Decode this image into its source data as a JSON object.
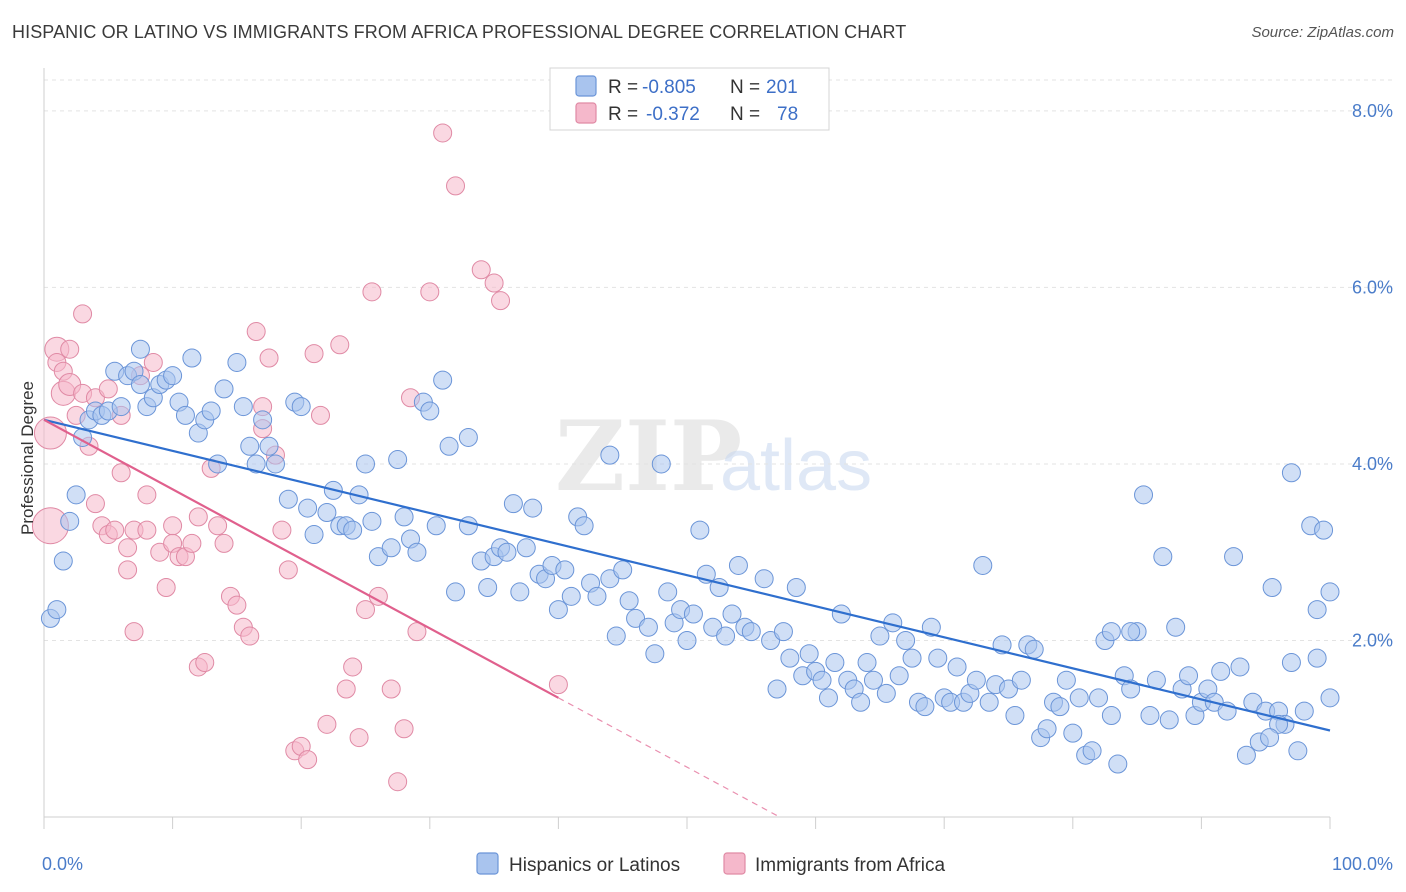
{
  "title": "HISPANIC OR LATINO VS IMMIGRANTS FROM AFRICA PROFESSIONAL DEGREE CORRELATION CHART",
  "source": "Source: ZipAtlas.com",
  "watermark": {
    "zip": "ZIP",
    "atlas": "atlas"
  },
  "legend": {
    "rows": [
      {
        "r_label": "R =",
        "r_value": "-0.805",
        "n_label": "N =",
        "n_value": "201",
        "color": "#a9c4ee",
        "stroke": "#6b95d8"
      },
      {
        "r_label": "R =",
        "r_value": "-0.372",
        "n_label": "N =",
        "n_value": "78",
        "color": "#f5b8cb",
        "stroke": "#e08aa5"
      }
    ]
  },
  "chart_data": {
    "type": "scatter",
    "xlabel": "",
    "ylabel": "Professional Degree",
    "xlim": [
      0,
      100
    ],
    "ylim": [
      0,
      8.35
    ],
    "x_tick_labels": [
      {
        "x": 0,
        "label": "0.0%"
      },
      {
        "x": 100,
        "label": "100.0%"
      }
    ],
    "y_ticks": [
      {
        "y": 2,
        "label": "2.0%"
      },
      {
        "y": 4,
        "label": "4.0%"
      },
      {
        "y": 6,
        "label": "6.0%"
      },
      {
        "y": 8,
        "label": "8.0%"
      }
    ],
    "grid": "horizontal dashed",
    "series": [
      {
        "name": "Hispanics or Latinos",
        "color": "#a9c4ee",
        "stroke": "#6b95d8",
        "line_color": "#2f6fce",
        "trend": {
          "x0": 0,
          "y0": 4.5,
          "x1": 100,
          "y1": 0.98
        },
        "points": [
          [
            0.5,
            2.25
          ],
          [
            1,
            2.35
          ],
          [
            1.5,
            2.9
          ],
          [
            2,
            3.35
          ],
          [
            2.5,
            3.65
          ],
          [
            3,
            4.3
          ],
          [
            3.5,
            4.5
          ],
          [
            4,
            4.6
          ],
          [
            4.5,
            4.55
          ],
          [
            5,
            4.6
          ],
          [
            5.5,
            5.05
          ],
          [
            6,
            4.65
          ],
          [
            6.5,
            5.0
          ],
          [
            7,
            5.05
          ],
          [
            7.5,
            5.3
          ],
          [
            7.5,
            4.9
          ],
          [
            8,
            4.65
          ],
          [
            8.5,
            4.75
          ],
          [
            9,
            4.9
          ],
          [
            9.5,
            4.95
          ],
          [
            10,
            5.0
          ],
          [
            10.5,
            4.7
          ],
          [
            11,
            4.55
          ],
          [
            11.5,
            5.2
          ],
          [
            12,
            4.35
          ],
          [
            12.5,
            4.5
          ],
          [
            13,
            4.6
          ],
          [
            13.5,
            4.0
          ],
          [
            14,
            4.85
          ],
          [
            15,
            5.15
          ],
          [
            15.5,
            4.65
          ],
          [
            16,
            4.2
          ],
          [
            16.5,
            4.0
          ],
          [
            17,
            4.5
          ],
          [
            17.5,
            4.2
          ],
          [
            18,
            4.0
          ],
          [
            19,
            3.6
          ],
          [
            19.5,
            4.7
          ],
          [
            20,
            4.65
          ],
          [
            20.5,
            3.5
          ],
          [
            21,
            3.2
          ],
          [
            22,
            3.45
          ],
          [
            22.5,
            3.7
          ],
          [
            23,
            3.3
          ],
          [
            23.5,
            3.3
          ],
          [
            24,
            3.25
          ],
          [
            24.5,
            3.65
          ],
          [
            25,
            4.0
          ],
          [
            25.5,
            3.35
          ],
          [
            26,
            2.95
          ],
          [
            27,
            3.05
          ],
          [
            27.5,
            4.05
          ],
          [
            28,
            3.4
          ],
          [
            28.5,
            3.15
          ],
          [
            29,
            3.0
          ],
          [
            29.5,
            4.7
          ],
          [
            30,
            4.6
          ],
          [
            30.5,
            3.3
          ],
          [
            31,
            4.95
          ],
          [
            31.5,
            4.2
          ],
          [
            32,
            2.55
          ],
          [
            33,
            4.3
          ],
          [
            33,
            3.3
          ],
          [
            34,
            2.9
          ],
          [
            34.5,
            2.6
          ],
          [
            35,
            2.95
          ],
          [
            35.5,
            3.05
          ],
          [
            36,
            3.0
          ],
          [
            36.5,
            3.55
          ],
          [
            37,
            2.55
          ],
          [
            37.5,
            3.05
          ],
          [
            38,
            3.5
          ],
          [
            38.5,
            2.75
          ],
          [
            39,
            2.7
          ],
          [
            39.5,
            2.85
          ],
          [
            40,
            2.35
          ],
          [
            40.5,
            2.8
          ],
          [
            41,
            2.5
          ],
          [
            41.5,
            3.4
          ],
          [
            42,
            3.3
          ],
          [
            42.5,
            2.65
          ],
          [
            43,
            2.5
          ],
          [
            44,
            2.7
          ],
          [
            44,
            4.1
          ],
          [
            44.5,
            2.05
          ],
          [
            45,
            2.8
          ],
          [
            45.5,
            2.45
          ],
          [
            46,
            2.25
          ],
          [
            47,
            2.15
          ],
          [
            47.5,
            1.85
          ],
          [
            48,
            4.0
          ],
          [
            48.5,
            2.55
          ],
          [
            49,
            2.2
          ],
          [
            49.5,
            2.35
          ],
          [
            50,
            2.0
          ],
          [
            50.5,
            2.3
          ],
          [
            51,
            3.25
          ],
          [
            51.5,
            2.75
          ],
          [
            52,
            2.15
          ],
          [
            52.5,
            2.6
          ],
          [
            53,
            2.05
          ],
          [
            53.5,
            2.3
          ],
          [
            54,
            2.85
          ],
          [
            54.5,
            2.15
          ],
          [
            55,
            2.1
          ],
          [
            56,
            2.7
          ],
          [
            56.5,
            2.0
          ],
          [
            57,
            1.45
          ],
          [
            57.5,
            2.1
          ],
          [
            58,
            1.8
          ],
          [
            58.5,
            2.6
          ],
          [
            59,
            1.6
          ],
          [
            59.5,
            1.85
          ],
          [
            60,
            1.65
          ],
          [
            60.5,
            1.55
          ],
          [
            61,
            1.35
          ],
          [
            61.5,
            1.75
          ],
          [
            62,
            2.3
          ],
          [
            62.5,
            1.55
          ],
          [
            63,
            1.45
          ],
          [
            63.5,
            1.3
          ],
          [
            64,
            1.75
          ],
          [
            64.5,
            1.55
          ],
          [
            65,
            2.05
          ],
          [
            65.5,
            1.4
          ],
          [
            66,
            2.2
          ],
          [
            66.5,
            1.6
          ],
          [
            67,
            2.0
          ],
          [
            67.5,
            1.8
          ],
          [
            68,
            1.3
          ],
          [
            68.5,
            1.25
          ],
          [
            69,
            2.15
          ],
          [
            69.5,
            1.8
          ],
          [
            70,
            1.35
          ],
          [
            70.5,
            1.3
          ],
          [
            71,
            1.7
          ],
          [
            71.5,
            1.3
          ],
          [
            72,
            1.4
          ],
          [
            72.5,
            1.55
          ],
          [
            73,
            2.85
          ],
          [
            73.5,
            1.3
          ],
          [
            74,
            1.5
          ],
          [
            74.5,
            1.95
          ],
          [
            75,
            1.45
          ],
          [
            75.5,
            1.15
          ],
          [
            76,
            1.55
          ],
          [
            76.5,
            1.95
          ],
          [
            77,
            1.9
          ],
          [
            77.5,
            0.9
          ],
          [
            78,
            1.0
          ],
          [
            78.5,
            1.3
          ],
          [
            79,
            1.25
          ],
          [
            79.5,
            1.55
          ],
          [
            80,
            0.95
          ],
          [
            80.5,
            1.35
          ],
          [
            81,
            0.7
          ],
          [
            81.5,
            0.75
          ],
          [
            82,
            1.35
          ],
          [
            82.5,
            2.0
          ],
          [
            83,
            1.15
          ],
          [
            83.5,
            0.6
          ],
          [
            84,
            1.6
          ],
          [
            84.5,
            1.45
          ],
          [
            85,
            2.1
          ],
          [
            85.5,
            3.65
          ],
          [
            86,
            1.15
          ],
          [
            86.5,
            1.55
          ],
          [
            87,
            2.95
          ],
          [
            87.5,
            1.1
          ],
          [
            88,
            2.15
          ],
          [
            88.5,
            1.45
          ],
          [
            89,
            1.6
          ],
          [
            89.5,
            1.15
          ],
          [
            90,
            1.3
          ],
          [
            90.5,
            1.45
          ],
          [
            91,
            1.3
          ],
          [
            91.5,
            1.65
          ],
          [
            92,
            1.2
          ],
          [
            92.5,
            2.95
          ],
          [
            93,
            1.7
          ],
          [
            93.5,
            0.7
          ],
          [
            94,
            1.3
          ],
          [
            94.5,
            0.85
          ],
          [
            95,
            1.2
          ],
          [
            95.5,
            2.6
          ],
          [
            96,
            1.2
          ],
          [
            96.5,
            1.05
          ],
          [
            97,
            1.75
          ],
          [
            97.5,
            0.75
          ],
          [
            98,
            1.2
          ],
          [
            98.5,
            3.3
          ],
          [
            99,
            2.35
          ],
          [
            99.5,
            3.25
          ],
          [
            100,
            1.35
          ],
          [
            100,
            2.55
          ],
          [
            97,
            3.9
          ],
          [
            96,
            1.05
          ],
          [
            99,
            1.8
          ],
          [
            95.3,
            0.9
          ],
          [
            84.5,
            2.1
          ],
          [
            83,
            2.1
          ]
        ]
      },
      {
        "name": "Immigrants from Africa",
        "color": "#f5b8cb",
        "stroke": "#e08aa5",
        "line_color": "#e0608d",
        "trend": {
          "x0": 0,
          "y0": 4.5,
          "x1": 40,
          "y1": 1.35
        },
        "trend_dash": {
          "x0": 40,
          "y0": 1.35,
          "x1": 57.2,
          "y1": 0.0
        },
        "points": [
          [
            0.5,
            4.35
          ],
          [
            0.5,
            3.3
          ],
          [
            1,
            5.3
          ],
          [
            1,
            5.15
          ],
          [
            1.5,
            5.05
          ],
          [
            1.5,
            4.8
          ],
          [
            2,
            5.3
          ],
          [
            2,
            4.9
          ],
          [
            2.5,
            4.55
          ],
          [
            3,
            5.7
          ],
          [
            3,
            4.8
          ],
          [
            3.5,
            4.2
          ],
          [
            4,
            4.75
          ],
          [
            4,
            3.55
          ],
          [
            4.5,
            3.3
          ],
          [
            5,
            4.85
          ],
          [
            5,
            3.2
          ],
          [
            5.5,
            3.25
          ],
          [
            6,
            4.55
          ],
          [
            6,
            3.9
          ],
          [
            6.5,
            3.05
          ],
          [
            6.5,
            2.8
          ],
          [
            7,
            3.25
          ],
          [
            7,
            2.1
          ],
          [
            7.5,
            5.0
          ],
          [
            8,
            3.65
          ],
          [
            8,
            3.25
          ],
          [
            8.5,
            5.15
          ],
          [
            9,
            3.0
          ],
          [
            9.5,
            2.6
          ],
          [
            10,
            3.3
          ],
          [
            10,
            3.1
          ],
          [
            10.5,
            2.95
          ],
          [
            11,
            2.95
          ],
          [
            11.5,
            3.1
          ],
          [
            12,
            3.4
          ],
          [
            12,
            1.7
          ],
          [
            12.5,
            1.75
          ],
          [
            13,
            3.95
          ],
          [
            13.5,
            3.3
          ],
          [
            14,
            3.1
          ],
          [
            14.5,
            2.5
          ],
          [
            15,
            2.4
          ],
          [
            15.5,
            2.15
          ],
          [
            16,
            2.05
          ],
          [
            16.5,
            5.5
          ],
          [
            17,
            4.4
          ],
          [
            17,
            4.65
          ],
          [
            17.5,
            5.2
          ],
          [
            18,
            4.1
          ],
          [
            18.5,
            3.25
          ],
          [
            19,
            2.8
          ],
          [
            19.5,
            0.75
          ],
          [
            20,
            0.8
          ],
          [
            20.5,
            0.65
          ],
          [
            21,
            5.25
          ],
          [
            21.5,
            4.55
          ],
          [
            22,
            1.05
          ],
          [
            23,
            5.35
          ],
          [
            23.5,
            1.45
          ],
          [
            24,
            1.7
          ],
          [
            24.5,
            0.9
          ],
          [
            25,
            2.35
          ],
          [
            25.5,
            5.95
          ],
          [
            26,
            2.5
          ],
          [
            27,
            1.45
          ],
          [
            27.5,
            0.4
          ],
          [
            28,
            1.0
          ],
          [
            28.5,
            4.75
          ],
          [
            29,
            2.1
          ],
          [
            30,
            5.95
          ],
          [
            31,
            7.75
          ],
          [
            32,
            7.15
          ],
          [
            34,
            6.2
          ],
          [
            35,
            6.05
          ],
          [
            35.5,
            5.85
          ],
          [
            40,
            1.5
          ]
        ]
      }
    ]
  },
  "bottom_legend": [
    {
      "label": "Hispanics or Latinos",
      "color": "#a9c4ee",
      "stroke": "#6b95d8"
    },
    {
      "label": "Immigrants from Africa",
      "color": "#f5b8cb",
      "stroke": "#e08aa5"
    }
  ]
}
